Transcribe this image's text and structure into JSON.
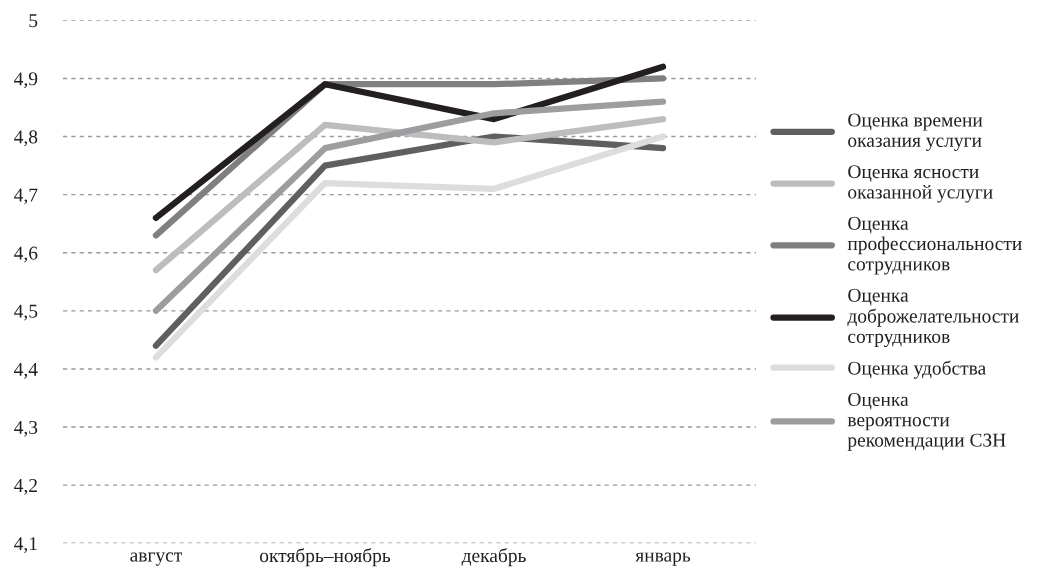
{
  "chart_data": {
    "type": "line",
    "categories": [
      "август",
      "октябрь–ноябрь",
      "декабрь",
      "январь"
    ],
    "series": [
      {
        "name": "Оценка времени оказания услуги",
        "color": "#5f5f5f",
        "values": [
          4.44,
          4.75,
          4.8,
          4.78
        ]
      },
      {
        "name": "Оценка ясности оказанной услуги",
        "color": "#bdbdbf",
        "values": [
          4.57,
          4.82,
          4.79,
          4.83
        ]
      },
      {
        "name": "Оценка профессиональности сотрудников",
        "color": "#808083",
        "values": [
          4.63,
          4.89,
          4.89,
          4.9
        ]
      },
      {
        "name": "Оценка доброжелательности сотрудников",
        "color": "#231f20",
        "values": [
          4.66,
          4.89,
          4.83,
          4.92
        ]
      },
      {
        "name": "Оценка удобства",
        "color": "#dcdddf",
        "values": [
          4.42,
          4.72,
          4.71,
          4.8
        ]
      },
      {
        "name": "Оценка вероятности рекомендации СЗН",
        "color": "#9d9d9f",
        "values": [
          4.5,
          4.78,
          4.84,
          4.86
        ]
      }
    ],
    "ylim": [
      4.1,
      5.0
    ],
    "yticks": [
      {
        "value": 4.1,
        "label": "4,1"
      },
      {
        "value": 4.2,
        "label": "4,2"
      },
      {
        "value": 4.3,
        "label": "4,3"
      },
      {
        "value": 4.4,
        "label": "4,4"
      },
      {
        "value": 4.5,
        "label": "4,5"
      },
      {
        "value": 4.6,
        "label": "4,6"
      },
      {
        "value": 4.7,
        "label": "4,7"
      },
      {
        "value": 4.8,
        "label": "4,8"
      },
      {
        "value": 4.9,
        "label": "4,9"
      },
      {
        "value": 5,
        "label": "5"
      }
    ],
    "grid": "y",
    "legend": "right",
    "marker": "none",
    "line_style": "solid"
  }
}
